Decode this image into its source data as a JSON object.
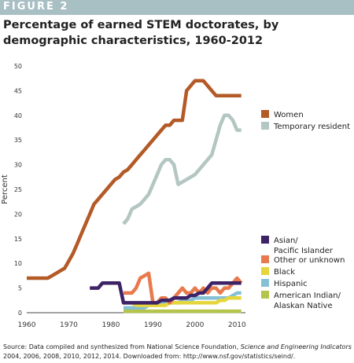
{
  "header": {
    "figure_label": "FIGURE 2",
    "title": "Percentage of earned STEM doctorates, by demographic characteristics, 1960-2012"
  },
  "source": {
    "prefix": "Source: Data compiled and synthesized from National Science Foundation, ",
    "publication": "Science and Engineering Indicators",
    "suffix": " 2004, 2006, 2008, 2010, 2012, 2014. Downloaded from: http://www.nsf.gov/statistics/seind/."
  },
  "colors": {
    "banner": "#a8bfc4",
    "women": "#b35a27",
    "temporary_resident": "#b3c6c2",
    "asian": "#3d2266",
    "other": "#e87a4d",
    "black": "#e6d63c",
    "hispanic": "#86c0d4",
    "native": "#b5c44a"
  },
  "chart_data": {
    "type": "line",
    "ylabel": "Percent",
    "xlabel": "",
    "xlim": [
      1960,
      2012
    ],
    "ylim": [
      0,
      50
    ],
    "xticks": [
      1960,
      1970,
      1980,
      1990,
      2000,
      2010
    ],
    "yticks": [
      0,
      5,
      10,
      15,
      20,
      25,
      30,
      35,
      40,
      45,
      50
    ],
    "legend_top": [
      {
        "label": "Women",
        "color": "#b35a27"
      },
      {
        "label": "Temporary resident",
        "color": "#b3c6c2"
      }
    ],
    "legend_bottom": [
      {
        "label": "Asian/",
        "label2": "Pacific Islander",
        "color": "#3d2266"
      },
      {
        "label": "Other or unknown",
        "label2": "",
        "color": "#e87a4d"
      },
      {
        "label": "Black",
        "label2": "",
        "color": "#e6d63c"
      },
      {
        "label": "Hispanic",
        "label2": "",
        "color": "#86c0d4"
      },
      {
        "label": "American Indian/",
        "label2": "Alaskan Native",
        "color": "#b5c44a"
      }
    ],
    "series": [
      {
        "name": "Women",
        "color": "#b35a27",
        "x": [
          1960,
          1965,
          1966,
          1967,
          1968,
          1969,
          1970,
          1971,
          1972,
          1973,
          1974,
          1975,
          1976,
          1977,
          1978,
          1979,
          1980,
          1981,
          1982,
          1983,
          1984,
          1985,
          1986,
          1987,
          1988,
          1989,
          1990,
          1991,
          1992,
          1993,
          1994,
          1995,
          1996,
          1997,
          1998,
          1999,
          2000,
          2001,
          2002,
          2003,
          2004,
          2005,
          2006,
          2007,
          2008,
          2009,
          2010,
          2011
        ],
        "y": [
          7,
          7,
          7.5,
          8,
          8.5,
          9,
          10.5,
          12,
          14,
          16,
          18,
          20,
          22,
          23,
          24,
          25,
          26,
          27,
          27.5,
          28.5,
          29,
          30,
          31,
          32,
          33,
          34,
          35,
          36,
          37,
          38,
          38,
          39,
          39,
          39,
          45,
          46,
          47,
          47,
          47,
          46,
          45,
          44,
          44,
          44,
          44,
          44,
          44,
          44
        ]
      },
      {
        "name": "Temporary resident",
        "color": "#b3c6c2",
        "x": [
          1983,
          1984,
          1985,
          1986,
          1987,
          1988,
          1989,
          1990,
          1991,
          1992,
          1993,
          1994,
          1995,
          1996,
          1997,
          1998,
          1999,
          2000,
          2001,
          2002,
          2003,
          2004,
          2005,
          2006,
          2007,
          2008,
          2009,
          2010,
          2011
        ],
        "y": [
          18,
          19,
          21,
          21.5,
          22,
          23,
          24,
          26,
          28,
          30,
          31,
          31,
          30,
          26,
          26.5,
          27,
          27.5,
          28,
          29,
          30,
          31,
          32,
          35,
          38,
          40,
          40,
          39,
          37,
          37
        ]
      },
      {
        "name": "Asian/Pacific Islander",
        "color": "#3d2266",
        "x": [
          1975,
          1976,
          1977,
          1978,
          1979,
          1980,
          1981,
          1982,
          1983,
          1984,
          1985,
          1986,
          1987,
          1988,
          1989,
          1990,
          1991,
          1992,
          1993,
          1994,
          1995,
          1996,
          1997,
          1998,
          1999,
          2000,
          2001,
          2002,
          2003,
          2004,
          2005,
          2006,
          2007,
          2008,
          2009,
          2010,
          2011
        ],
        "y": [
          5,
          5,
          5,
          6,
          6,
          6,
          6,
          6,
          2,
          2,
          2,
          2,
          2,
          2,
          2,
          2,
          2,
          2.5,
          2.5,
          2.5,
          3,
          3,
          3,
          3,
          3.5,
          3.5,
          4,
          4,
          5,
          6,
          6,
          6,
          6,
          6,
          6,
          6,
          6
        ]
      },
      {
        "name": "Other or unknown",
        "color": "#e87a4d",
        "x": [
          1983,
          1984,
          1985,
          1986,
          1987,
          1988,
          1989,
          1990,
          1991,
          1992,
          1993,
          1994,
          1995,
          1996,
          1997,
          1998,
          1999,
          2000,
          2001,
          2002,
          2003,
          2004,
          2005,
          2006,
          2007,
          2008,
          2009,
          2010,
          2011
        ],
        "y": [
          4,
          4,
          4,
          5,
          7,
          7.5,
          8,
          2,
          2,
          3,
          3,
          2,
          3,
          4,
          5,
          4,
          4,
          5,
          4,
          5,
          4,
          5,
          5,
          4,
          5,
          5,
          6,
          7,
          6
        ]
      },
      {
        "name": "Black",
        "color": "#e6d63c",
        "x": [
          1983,
          1984,
          1985,
          1986,
          1987,
          1988,
          1989,
          1990,
          1991,
          1992,
          1993,
          1994,
          1995,
          1996,
          1997,
          1998,
          1999,
          2000,
          2001,
          2002,
          2003,
          2004,
          2005,
          2006,
          2007,
          2008,
          2009,
          2010,
          2011
        ],
        "y": [
          2,
          2,
          2,
          1.5,
          1.5,
          1.5,
          1.5,
          1.5,
          1.5,
          1.5,
          1.5,
          2,
          2,
          2,
          2,
          2,
          2,
          2,
          2,
          2,
          2,
          2,
          2,
          2.5,
          2.5,
          3,
          3,
          3,
          3
        ]
      },
      {
        "name": "Hispanic",
        "color": "#86c0d4",
        "x": [
          1983,
          1984,
          1985,
          1986,
          1987,
          1988,
          1989,
          1990,
          1991,
          1992,
          1993,
          1994,
          1995,
          1996,
          1997,
          1998,
          1999,
          2000,
          2001,
          2002,
          2003,
          2004,
          2005,
          2006,
          2007,
          2008,
          2009,
          2010,
          2011
        ],
        "y": [
          1,
          1,
          1,
          1,
          1,
          1,
          1.5,
          1.5,
          1.5,
          2,
          2,
          2,
          2,
          2,
          2.5,
          2.5,
          2.5,
          3,
          3,
          3,
          3,
          3,
          3,
          3,
          3,
          3,
          3.5,
          4,
          4
        ]
      },
      {
        "name": "American Indian/Alaskan Native",
        "color": "#b5c44a",
        "x": [
          1983,
          1990,
          2000,
          2005,
          2011
        ],
        "y": [
          0.3,
          0.3,
          0.3,
          0.3,
          0.3
        ]
      }
    ]
  }
}
